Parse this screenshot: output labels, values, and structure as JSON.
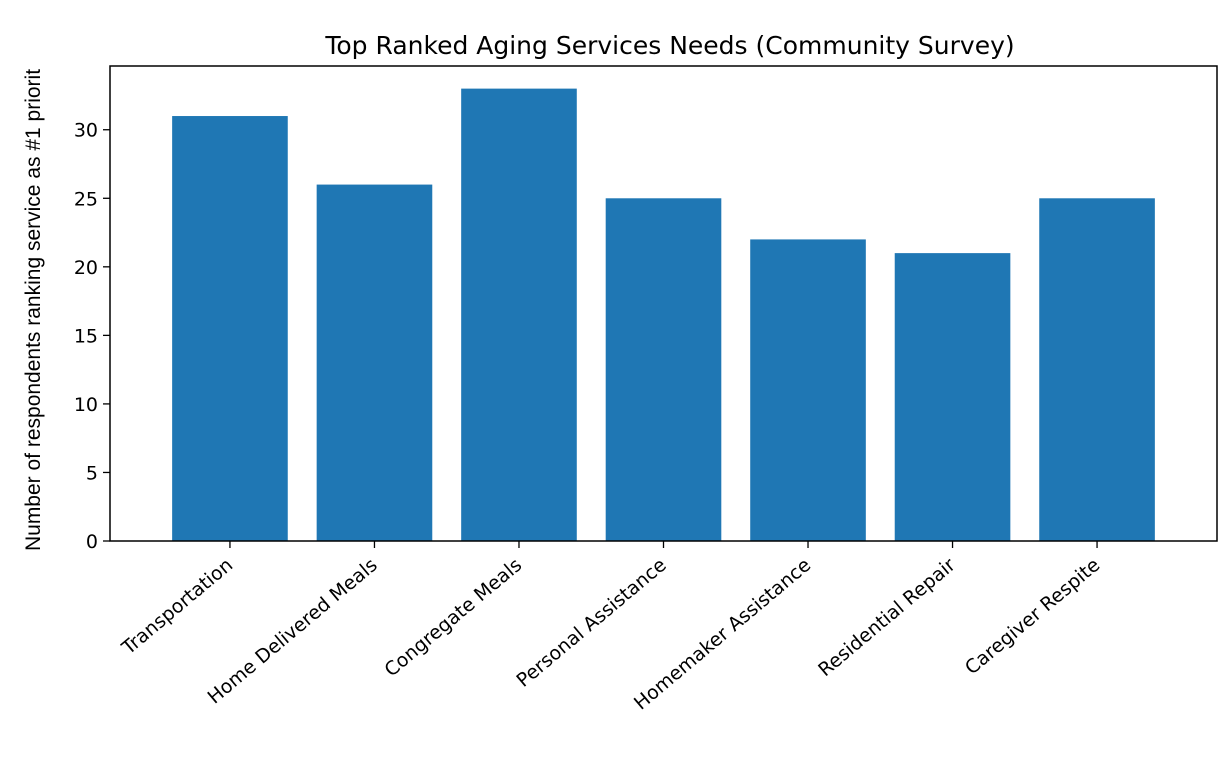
{
  "chart_data": {
    "type": "bar",
    "title": "Top Ranked Aging Services Needs (Community Survey)",
    "xlabel": "",
    "ylabel": "Number of respondents ranking service as #1 priorit",
    "categories": [
      "Transportation",
      "Home Delivered Meals",
      "Congregate Meals",
      "Personal Assistance",
      "Homemaker Assistance",
      "Residential Repair",
      "Caregiver Respite"
    ],
    "values": [
      31,
      26,
      33,
      25,
      22,
      21,
      25
    ],
    "ylim": [
      0,
      34.65
    ],
    "yticks": [
      0,
      5,
      10,
      15,
      20,
      25,
      30
    ],
    "bar_color": "#1f77b4",
    "grid": false,
    "legend": "none"
  }
}
